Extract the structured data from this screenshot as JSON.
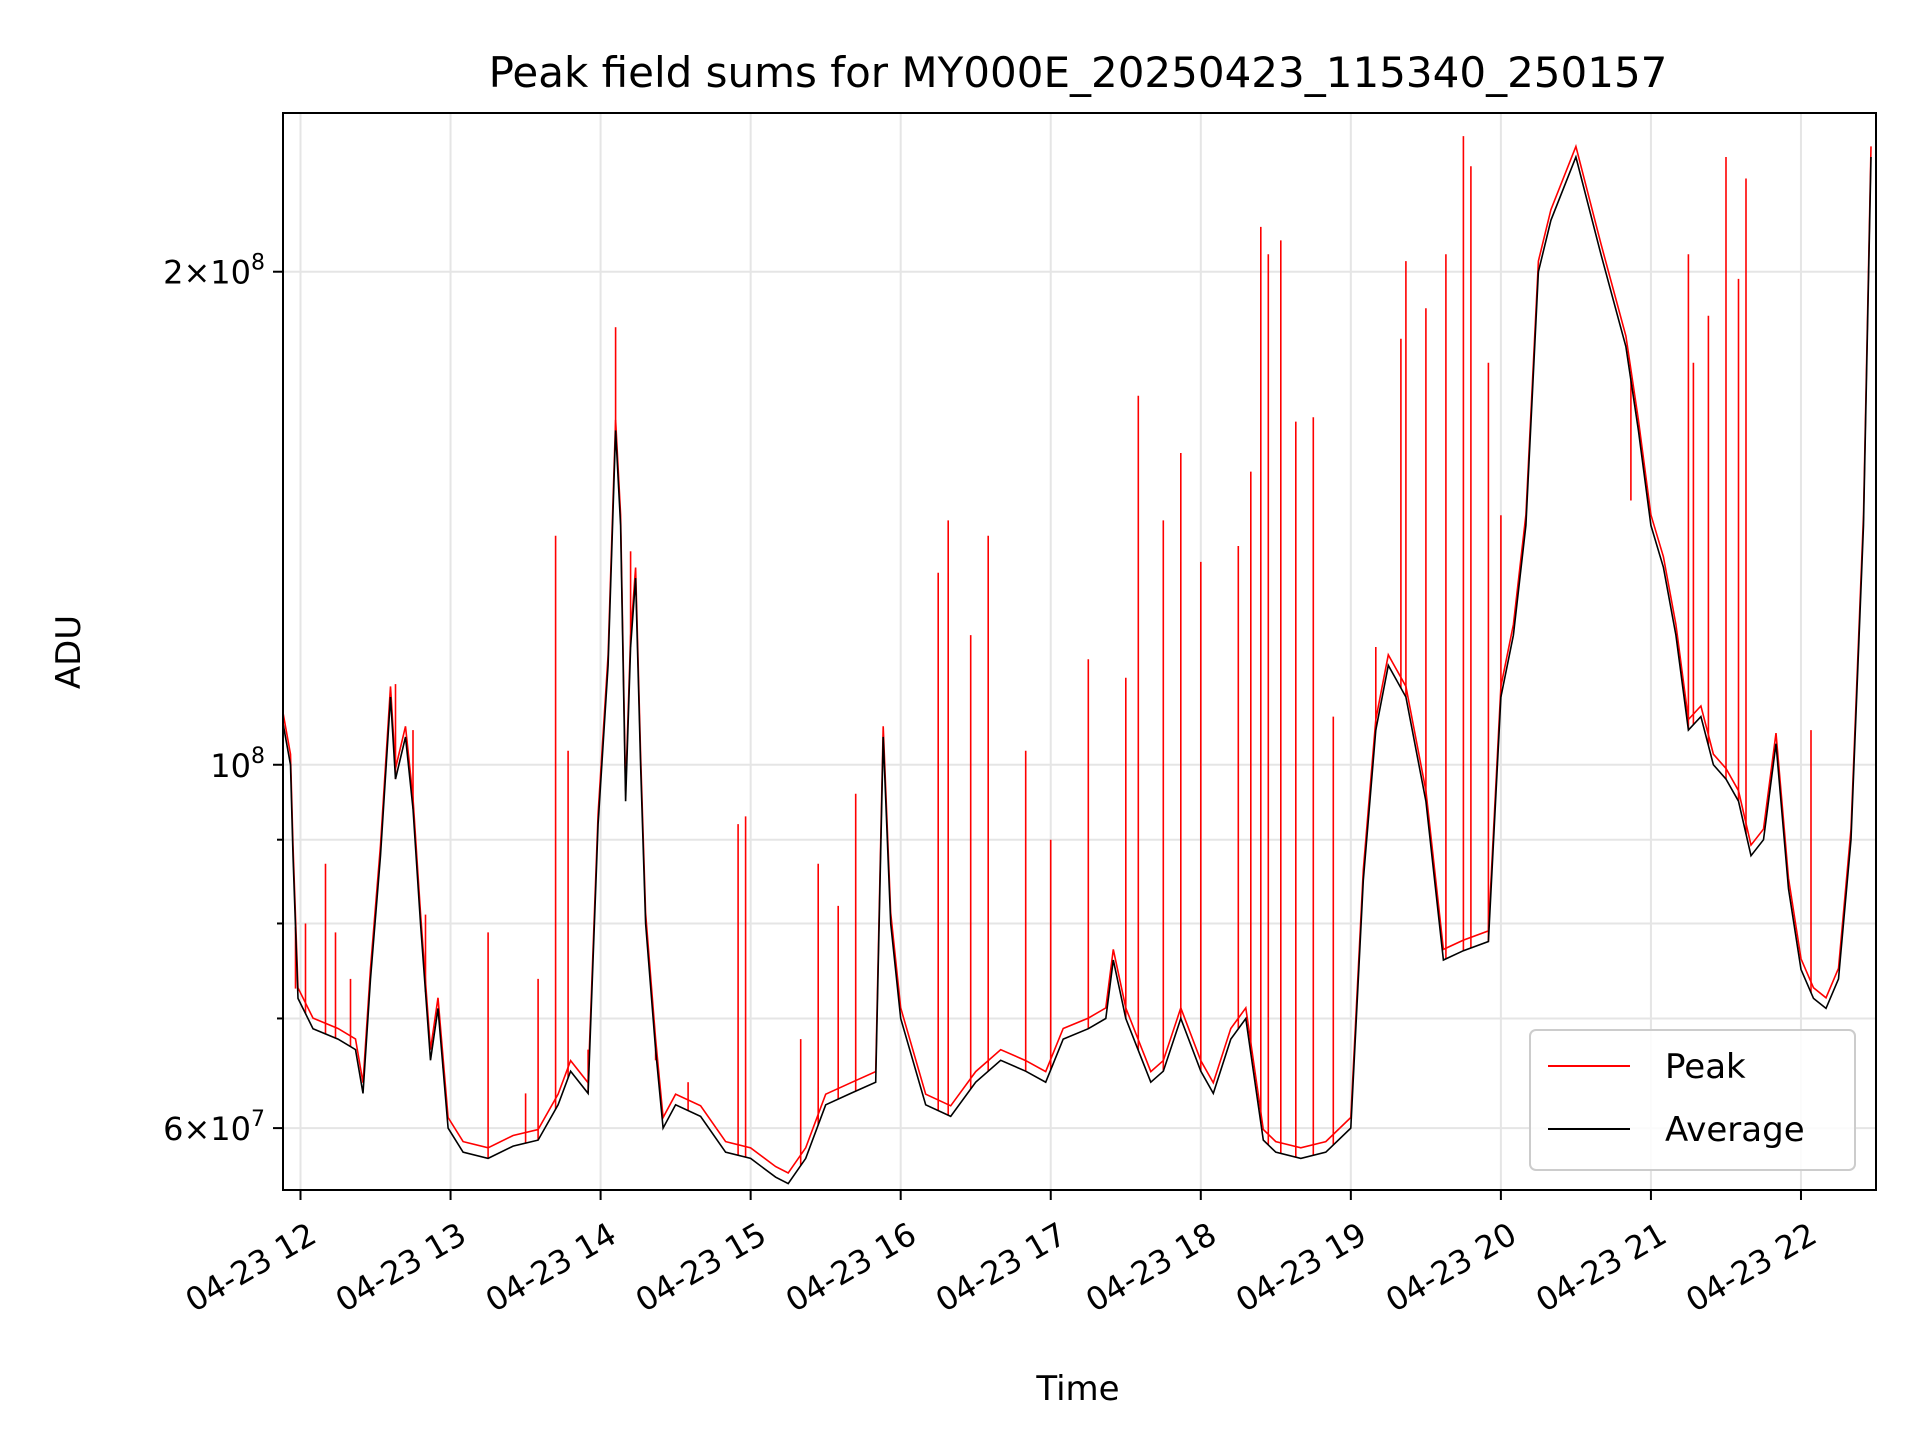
{
  "chart_data": {
    "type": "line",
    "title": "Peak field sums for MY000E_20250423_115340_250157",
    "xlabel": "Time",
    "ylabel": "ADU",
    "yscale": "log",
    "xlim": [
      "2025-04-23 11:53",
      "2025-04-23 22:30"
    ],
    "ylim": [
      55000000,
      250000000
    ],
    "x_ticks": [
      "04-23 12",
      "04-23 13",
      "04-23 14",
      "04-23 15",
      "04-23 16",
      "04-23 17",
      "04-23 18",
      "04-23 19",
      "04-23 20",
      "04-23 21",
      "04-23 22"
    ],
    "y_ticks": [
      {
        "value": 60000000,
        "mantissa": "6",
        "exponent": "7",
        "labeled": true
      },
      {
        "value": 70000000,
        "labeled": false
      },
      {
        "value": 80000000,
        "labeled": false
      },
      {
        "value": 90000000,
        "labeled": false
      },
      {
        "value": 100000000,
        "mantissa": "",
        "exponent": "8",
        "labeled": true
      },
      {
        "value": 200000000,
        "mantissa": "2",
        "exponent": "8",
        "labeled": true
      }
    ],
    "grid": true,
    "legend_position": "lower-right",
    "series": [
      {
        "name": "Peak",
        "color": "#ff0000",
        "spikes": [
          {
            "x": "11:58",
            "y": 73000000
          },
          {
            "x": "12:02",
            "y": 80000000
          },
          {
            "x": "12:10",
            "y": 87000000
          },
          {
            "x": "12:14",
            "y": 79000000
          },
          {
            "x": "12:20",
            "y": 74000000
          },
          {
            "x": "12:38",
            "y": 112000000
          },
          {
            "x": "12:45",
            "y": 105000000
          },
          {
            "x": "12:50",
            "y": 81000000
          },
          {
            "x": "12:57",
            "y": 66000000
          },
          {
            "x": "13:15",
            "y": 79000000
          },
          {
            "x": "13:30",
            "y": 63000000
          },
          {
            "x": "13:35",
            "y": 74000000
          },
          {
            "x": "13:42",
            "y": 138000000
          },
          {
            "x": "13:47",
            "y": 102000000
          },
          {
            "x": "13:55",
            "y": 67000000
          },
          {
            "x": "14:06",
            "y": 185000000
          },
          {
            "x": "14:12",
            "y": 135000000
          },
          {
            "x": "14:22",
            "y": 66000000
          },
          {
            "x": "14:35",
            "y": 64000000
          },
          {
            "x": "14:55",
            "y": 92000000
          },
          {
            "x": "14:58",
            "y": 93000000
          },
          {
            "x": "15:20",
            "y": 68000000
          },
          {
            "x": "15:27",
            "y": 87000000
          },
          {
            "x": "15:35",
            "y": 82000000
          },
          {
            "x": "15:42",
            "y": 96000000
          },
          {
            "x": "15:53",
            "y": 104000000
          },
          {
            "x": "16:15",
            "y": 131000000
          },
          {
            "x": "16:19",
            "y": 141000000
          },
          {
            "x": "16:28",
            "y": 120000000
          },
          {
            "x": "16:35",
            "y": 138000000
          },
          {
            "x": "16:50",
            "y": 102000000
          },
          {
            "x": "17:00",
            "y": 90000000
          },
          {
            "x": "17:15",
            "y": 116000000
          },
          {
            "x": "17:30",
            "y": 113000000
          },
          {
            "x": "17:35",
            "y": 168000000
          },
          {
            "x": "17:45",
            "y": 141000000
          },
          {
            "x": "17:52",
            "y": 155000000
          },
          {
            "x": "18:00",
            "y": 133000000
          },
          {
            "x": "18:15",
            "y": 136000000
          },
          {
            "x": "18:20",
            "y": 151000000
          },
          {
            "x": "18:24",
            "y": 213000000
          },
          {
            "x": "18:27",
            "y": 205000000
          },
          {
            "x": "18:32",
            "y": 209000000
          },
          {
            "x": "18:38",
            "y": 162000000
          },
          {
            "x": "18:45",
            "y": 163000000
          },
          {
            "x": "18:53",
            "y": 107000000
          },
          {
            "x": "19:10",
            "y": 118000000
          },
          {
            "x": "19:20",
            "y": 182000000
          },
          {
            "x": "19:22",
            "y": 203000000
          },
          {
            "x": "19:30",
            "y": 190000000
          },
          {
            "x": "19:38",
            "y": 205000000
          },
          {
            "x": "19:45",
            "y": 242000000
          },
          {
            "x": "19:48",
            "y": 232000000
          },
          {
            "x": "19:55",
            "y": 176000000
          },
          {
            "x": "20:00",
            "y": 142000000
          },
          {
            "x": "20:52",
            "y": 145000000
          },
          {
            "x": "21:15",
            "y": 205000000
          },
          {
            "x": "21:17",
            "y": 176000000
          },
          {
            "x": "21:23",
            "y": 188000000
          },
          {
            "x": "21:30",
            "y": 235000000
          },
          {
            "x": "21:35",
            "y": 198000000
          },
          {
            "x": "21:38",
            "y": 228000000
          },
          {
            "x": "22:04",
            "y": 105000000
          }
        ]
      },
      {
        "name": "Average",
        "color": "#000000",
        "points": [
          {
            "x": "11:53",
            "y": 106000000
          },
          {
            "x": "11:56",
            "y": 100000000
          },
          {
            "x": "11:57",
            "y": 88000000
          },
          {
            "x": "11:59",
            "y": 72000000
          },
          {
            "x": "12:05",
            "y": 69000000
          },
          {
            "x": "12:15",
            "y": 68000000
          },
          {
            "x": "12:22",
            "y": 67000000
          },
          {
            "x": "12:25",
            "y": 63000000
          },
          {
            "x": "12:28",
            "y": 74000000
          },
          {
            "x": "12:32",
            "y": 88000000
          },
          {
            "x": "12:36",
            "y": 110000000
          },
          {
            "x": "12:38",
            "y": 98000000
          },
          {
            "x": "12:42",
            "y": 104000000
          },
          {
            "x": "12:45",
            "y": 94000000
          },
          {
            "x": "12:48",
            "y": 80000000
          },
          {
            "x": "12:52",
            "y": 66000000
          },
          {
            "x": "12:55",
            "y": 71000000
          },
          {
            "x": "12:59",
            "y": 60000000
          },
          {
            "x": "13:05",
            "y": 58000000
          },
          {
            "x": "13:15",
            "y": 57500000
          },
          {
            "x": "13:25",
            "y": 58500000
          },
          {
            "x": "13:35",
            "y": 59000000
          },
          {
            "x": "13:43",
            "y": 62000000
          },
          {
            "x": "13:48",
            "y": 65000000
          },
          {
            "x": "13:55",
            "y": 63000000
          },
          {
            "x": "13:59",
            "y": 92000000
          },
          {
            "x": "14:03",
            "y": 115000000
          },
          {
            "x": "14:06",
            "y": 160000000
          },
          {
            "x": "14:08",
            "y": 140000000
          },
          {
            "x": "14:10",
            "y": 95000000
          },
          {
            "x": "14:12",
            "y": 118000000
          },
          {
            "x": "14:14",
            "y": 130000000
          },
          {
            "x": "14:16",
            "y": 100000000
          },
          {
            "x": "14:18",
            "y": 80000000
          },
          {
            "x": "14:22",
            "y": 67000000
          },
          {
            "x": "14:25",
            "y": 60000000
          },
          {
            "x": "14:30",
            "y": 62000000
          },
          {
            "x": "14:40",
            "y": 61000000
          },
          {
            "x": "14:50",
            "y": 58000000
          },
          {
            "x": "15:00",
            "y": 57500000
          },
          {
            "x": "15:10",
            "y": 56000000
          },
          {
            "x": "15:15",
            "y": 55500000
          },
          {
            "x": "15:22",
            "y": 57500000
          },
          {
            "x": "15:30",
            "y": 62000000
          },
          {
            "x": "15:40",
            "y": 63000000
          },
          {
            "x": "15:50",
            "y": 64000000
          },
          {
            "x": "15:53",
            "y": 104000000
          },
          {
            "x": "15:56",
            "y": 80000000
          },
          {
            "x": "16:00",
            "y": 70000000
          },
          {
            "x": "16:10",
            "y": 62000000
          },
          {
            "x": "16:20",
            "y": 61000000
          },
          {
            "x": "16:30",
            "y": 64000000
          },
          {
            "x": "16:40",
            "y": 66000000
          },
          {
            "x": "16:50",
            "y": 65000000
          },
          {
            "x": "16:58",
            "y": 64000000
          },
          {
            "x": "17:05",
            "y": 68000000
          },
          {
            "x": "17:15",
            "y": 69000000
          },
          {
            "x": "17:22",
            "y": 70000000
          },
          {
            "x": "17:25",
            "y": 76000000
          },
          {
            "x": "17:30",
            "y": 70000000
          },
          {
            "x": "17:40",
            "y": 64000000
          },
          {
            "x": "17:45",
            "y": 65000000
          },
          {
            "x": "17:52",
            "y": 70000000
          },
          {
            "x": "18:00",
            "y": 65000000
          },
          {
            "x": "18:05",
            "y": 63000000
          },
          {
            "x": "18:12",
            "y": 68000000
          },
          {
            "x": "18:18",
            "y": 70000000
          },
          {
            "x": "18:25",
            "y": 59000000
          },
          {
            "x": "18:30",
            "y": 58000000
          },
          {
            "x": "18:40",
            "y": 57500000
          },
          {
            "x": "18:50",
            "y": 58000000
          },
          {
            "x": "19:00",
            "y": 60000000
          },
          {
            "x": "19:05",
            "y": 85000000
          },
          {
            "x": "19:10",
            "y": 105000000
          },
          {
            "x": "19:15",
            "y": 115000000
          },
          {
            "x": "19:22",
            "y": 110000000
          },
          {
            "x": "19:30",
            "y": 95000000
          },
          {
            "x": "19:37",
            "y": 76000000
          },
          {
            "x": "19:45",
            "y": 77000000
          },
          {
            "x": "19:55",
            "y": 78000000
          },
          {
            "x": "20:00",
            "y": 110000000
          },
          {
            "x": "20:05",
            "y": 120000000
          },
          {
            "x": "20:10",
            "y": 140000000
          },
          {
            "x": "20:15",
            "y": 200000000
          },
          {
            "x": "20:20",
            "y": 215000000
          },
          {
            "x": "20:30",
            "y": 235000000
          },
          {
            "x": "20:40",
            "y": 205000000
          },
          {
            "x": "20:50",
            "y": 180000000
          },
          {
            "x": "20:55",
            "y": 160000000
          },
          {
            "x": "21:00",
            "y": 140000000
          },
          {
            "x": "21:05",
            "y": 132000000
          },
          {
            "x": "21:10",
            "y": 120000000
          },
          {
            "x": "21:15",
            "y": 105000000
          },
          {
            "x": "21:20",
            "y": 107000000
          },
          {
            "x": "21:25",
            "y": 100000000
          },
          {
            "x": "21:30",
            "y": 98000000
          },
          {
            "x": "21:35",
            "y": 95000000
          },
          {
            "x": "21:40",
            "y": 88000000
          },
          {
            "x": "21:45",
            "y": 90000000
          },
          {
            "x": "21:50",
            "y": 103000000
          },
          {
            "x": "21:55",
            "y": 84000000
          },
          {
            "x": "22:00",
            "y": 75000000
          },
          {
            "x": "22:05",
            "y": 72000000
          },
          {
            "x": "22:10",
            "y": 71000000
          },
          {
            "x": "22:15",
            "y": 74000000
          },
          {
            "x": "22:20",
            "y": 90000000
          },
          {
            "x": "22:25",
            "y": 140000000
          },
          {
            "x": "22:28",
            "y": 235000000
          }
        ]
      }
    ],
    "legend": [
      {
        "label": "Peak",
        "color": "#ff0000"
      },
      {
        "label": "Average",
        "color": "#000000"
      }
    ]
  }
}
